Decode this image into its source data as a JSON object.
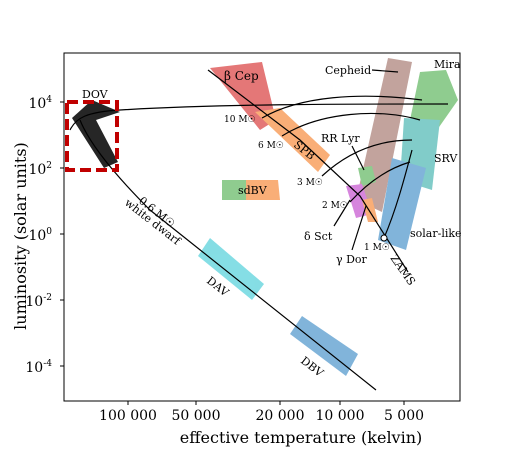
{
  "chart_data": {
    "type": "scatter",
    "title": "",
    "xlabel": "effective temperature (kelvin)",
    "ylabel": "luminosity (solar units)",
    "x_ticks": [
      "100 000",
      "50 000",
      "20 000",
      "10 000",
      "5 000"
    ],
    "y_ticks": [
      {
        "base": "10",
        "exp": "4"
      },
      {
        "base": "10",
        "exp": "2"
      },
      {
        "base": "10",
        "exp": "0"
      },
      {
        "base": "10",
        "exp": "-2"
      },
      {
        "base": "10",
        "exp": "-4"
      }
    ],
    "regions": [
      {
        "name": "DOV",
        "label": "DOV",
        "color": "#d4d96b"
      },
      {
        "name": "beta-cep",
        "label": "β Cep",
        "color": "#e06060"
      },
      {
        "name": "spb",
        "label": "SPB",
        "color": "#f8a060"
      },
      {
        "name": "sdbv",
        "label": "sdBV",
        "color": "#f8a060"
      },
      {
        "name": "sdbv-g",
        "label": "",
        "color": "#7cc47c"
      },
      {
        "name": "cepheid",
        "label": "Cepheid",
        "color": "#b8938c"
      },
      {
        "name": "mira",
        "label": "Mira",
        "color": "#7cc47c"
      },
      {
        "name": "srv",
        "label": "SRV",
        "color": "#6cc4c0"
      },
      {
        "name": "rr-lyr",
        "label": "RR Lyr",
        "color": "#7cc47c"
      },
      {
        "name": "delta-sct",
        "label": "δ Sct",
        "color": "#d070d8"
      },
      {
        "name": "gamma-dor",
        "label": "γ Dor",
        "color": "#f8a060"
      },
      {
        "name": "solar-like",
        "label": "solar-like",
        "color": "#6ca8d4"
      },
      {
        "name": "dav",
        "label": "DAV",
        "color": "#70d8e0"
      },
      {
        "name": "dbv",
        "label": "DBV",
        "color": "#6ca8d4"
      }
    ],
    "mass_labels": [
      "10 M☉",
      "6 M☉",
      "3 M☉",
      "2 M☉",
      "1 M☉"
    ],
    "line_labels": {
      "zams": "ZAMS",
      "white_dwarf": "white dwarf",
      "wd_mass": "0.6 M☉"
    },
    "highlight_box": {
      "color": "#c00000",
      "style": "dashed"
    },
    "grid": false,
    "legend": "none"
  }
}
